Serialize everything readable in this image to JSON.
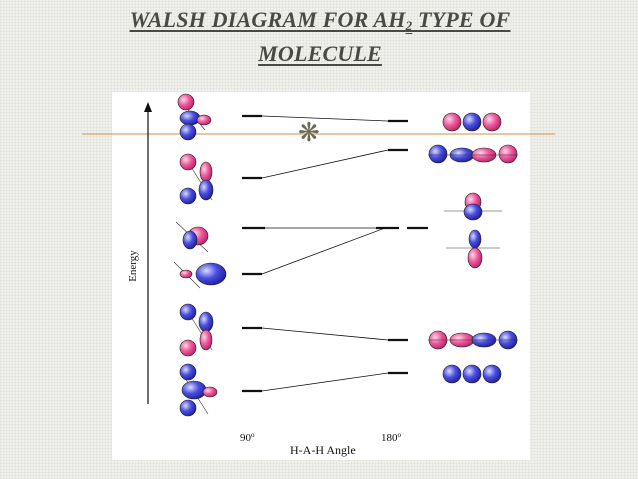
{
  "slide": {
    "title_line1": "WALSH DIAGRAM FOR AH",
    "title_subscript": "2",
    "title_line1_rest": " TYPE OF",
    "title_line2": "MOLECULE",
    "bullet_glyph": "❋"
  },
  "diagram": {
    "y_axis_label": "Energy",
    "x_axis_label": "H-A-H Angle",
    "x_left_label": "90",
    "x_right_label": "180",
    "degree_mark": "o"
  },
  "colors": {
    "title": "#4a4a44",
    "accent_line": "#d9a46a",
    "lobe_pink": "#ee5a9a",
    "lobe_blue": "#4a4ee0",
    "ink": "#111111"
  }
}
